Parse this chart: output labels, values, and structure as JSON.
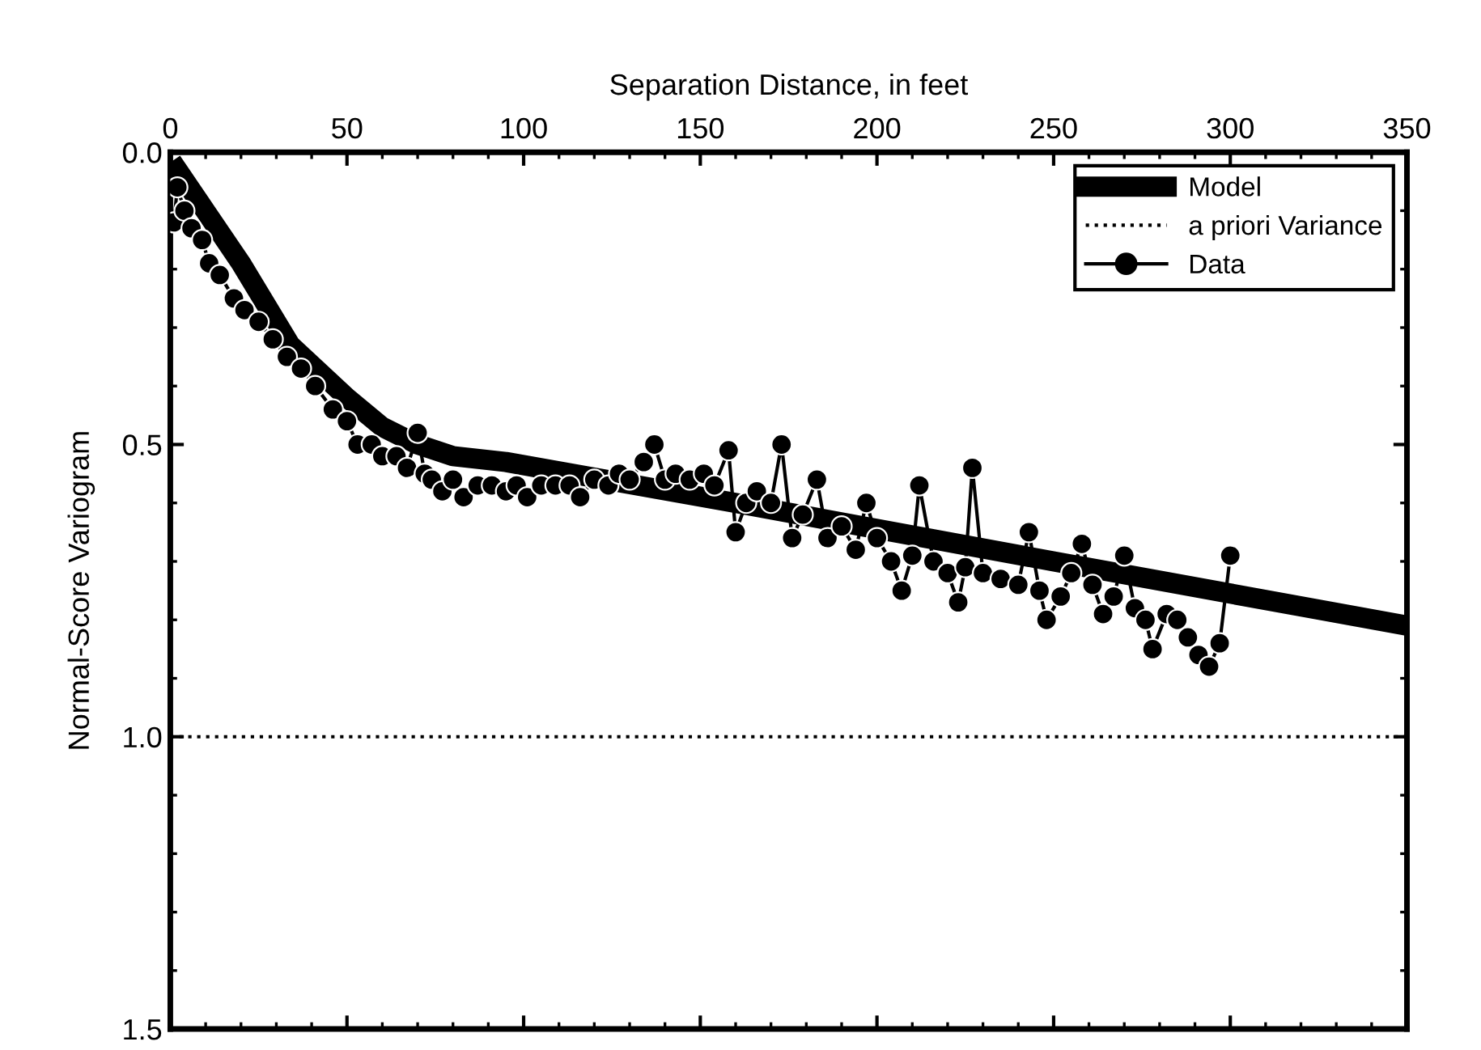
{
  "chart_data": {
    "type": "line",
    "xlabel": "Separation Distance, in feet",
    "ylabel": "Normal-Score Variogram",
    "xlim": [
      0,
      350
    ],
    "xticks": [
      0,
      50,
      100,
      150,
      200,
      250,
      300,
      350
    ],
    "ylim": [
      1.5,
      0.0
    ],
    "yticks": [
      {
        "value": 0,
        "label": "0.0"
      },
      0.5,
      {
        "value": 1,
        "label": "1.0"
      },
      1.5
    ],
    "legend": "top right",
    "grid": false,
    "series": [
      {
        "name": "Model",
        "color": "#000000",
        "marker": "none",
        "line_style": "solid",
        "x": [
          2,
          20,
          34,
          50,
          60,
          70,
          80,
          95,
          123,
          160,
          250,
          350
        ],
        "values": [
          0.03,
          0.19,
          0.33,
          0.42,
          0.47,
          0.5,
          0.52,
          0.53,
          0.56,
          0.6,
          0.7,
          0.81
        ]
      },
      {
        "name": "a priori Variance",
        "color": "#000000",
        "marker": "none",
        "line_style": "dotted",
        "x": [
          0,
          350
        ],
        "values": [
          1.0,
          1.0
        ]
      },
      {
        "name": "Data",
        "color": "#000000",
        "marker": "circle",
        "line_style": "solid",
        "x": [
          1,
          2,
          4,
          6,
          9,
          11,
          14,
          18,
          21,
          25,
          29,
          33,
          37,
          41,
          46,
          50,
          53,
          57,
          60,
          64,
          67,
          70,
          72,
          74,
          77,
          80,
          83,
          87,
          91,
          95,
          98,
          101,
          105,
          109,
          113,
          116,
          120,
          124,
          127,
          130,
          134,
          137,
          140,
          143,
          147,
          151,
          154,
          158,
          160,
          163,
          166,
          170,
          173,
          176,
          179,
          183,
          186,
          190,
          194,
          197,
          200,
          204,
          207,
          210,
          212,
          216,
          220,
          223,
          225,
          227,
          230,
          235,
          240,
          243,
          246,
          248,
          252,
          255,
          258,
          261,
          264,
          267,
          270,
          273,
          276,
          278,
          282,
          285,
          288,
          291,
          294,
          297,
          300
        ],
        "values": [
          0.12,
          0.06,
          0.1,
          0.13,
          0.15,
          0.19,
          0.21,
          0.25,
          0.27,
          0.29,
          0.32,
          0.35,
          0.37,
          0.4,
          0.44,
          0.46,
          0.5,
          0.5,
          0.52,
          0.52,
          0.54,
          0.48,
          0.55,
          0.56,
          0.58,
          0.56,
          0.59,
          0.57,
          0.57,
          0.58,
          0.57,
          0.59,
          0.57,
          0.57,
          0.57,
          0.59,
          0.56,
          0.57,
          0.55,
          0.56,
          0.53,
          0.5,
          0.56,
          0.55,
          0.56,
          0.55,
          0.57,
          0.51,
          0.65,
          0.6,
          0.58,
          0.6,
          0.5,
          0.66,
          0.62,
          0.56,
          0.66,
          0.64,
          0.68,
          0.6,
          0.66,
          0.7,
          0.75,
          0.69,
          0.57,
          0.7,
          0.72,
          0.77,
          0.71,
          0.54,
          0.72,
          0.73,
          0.74,
          0.65,
          0.75,
          0.8,
          0.76,
          0.72,
          0.67,
          0.74,
          0.79,
          0.76,
          0.69,
          0.78,
          0.8,
          0.85,
          0.79,
          0.8,
          0.83,
          0.86,
          0.88,
          0.84,
          0.69
        ]
      }
    ]
  }
}
